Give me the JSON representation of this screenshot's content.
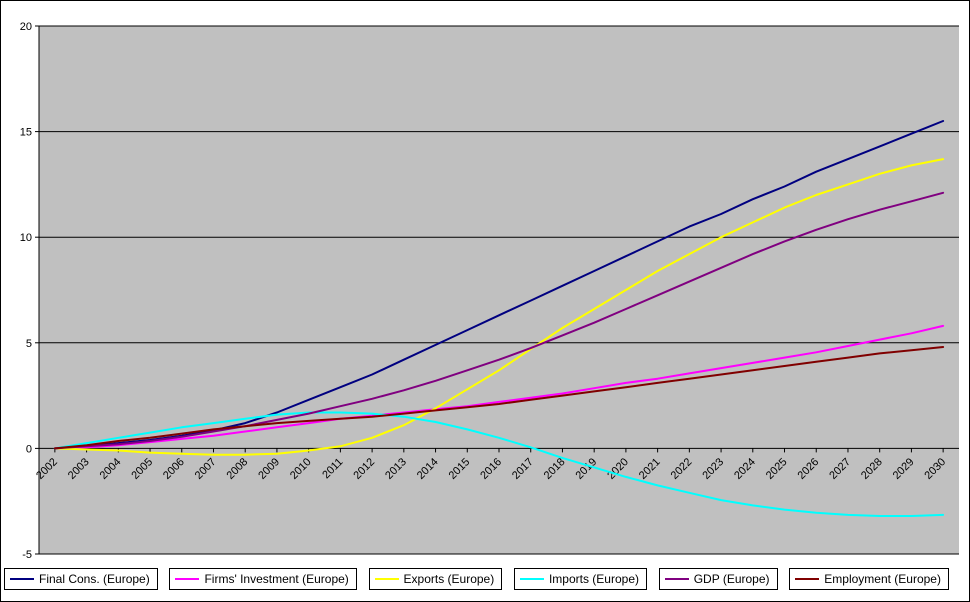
{
  "chart_data": {
    "type": "line",
    "title": "",
    "xlabel": "",
    "ylabel": "",
    "categories": [
      "2002",
      "2003",
      "2004",
      "2005",
      "2006",
      "2007",
      "2008",
      "2009",
      "2010",
      "2011",
      "2012",
      "2013",
      "2014",
      "2015",
      "2016",
      "2017",
      "2018",
      "2019",
      "2020",
      "2021",
      "2022",
      "2023",
      "2024",
      "2025",
      "2026",
      "2027",
      "2028",
      "2029",
      "2030"
    ],
    "ylim": [
      -5,
      20
    ],
    "yticks": [
      20,
      15,
      10,
      5,
      0,
      -5
    ],
    "grid": true,
    "gridline_color": "#000000",
    "plot_bg": "#c0c0c0",
    "legend_position": "bottom",
    "series": [
      {
        "name": "Final Cons. (Europe)",
        "color": "#000080",
        "values": [
          0,
          0.1,
          0.25,
          0.4,
          0.6,
          0.85,
          1.2,
          1.7,
          2.3,
          2.9,
          3.5,
          4.2,
          4.9,
          5.6,
          6.3,
          7.0,
          7.7,
          8.4,
          9.1,
          9.8,
          10.5,
          11.1,
          11.8,
          12.4,
          13.1,
          13.7,
          14.3,
          14.9,
          15.5
        ]
      },
      {
        "name": "Firms' Investment (Europe)",
        "color": "#ff00ff",
        "values": [
          0,
          0.05,
          0.15,
          0.3,
          0.45,
          0.6,
          0.8,
          1.0,
          1.2,
          1.4,
          1.55,
          1.7,
          1.85,
          2.0,
          2.2,
          2.4,
          2.6,
          2.85,
          3.1,
          3.3,
          3.55,
          3.8,
          4.05,
          4.3,
          4.55,
          4.85,
          5.15,
          5.45,
          5.8
        ]
      },
      {
        "name": "Exports (Europe)",
        "color": "#ffff00",
        "values": [
          0,
          -0.05,
          -0.1,
          -0.2,
          -0.25,
          -0.3,
          -0.3,
          -0.25,
          -0.1,
          0.1,
          0.5,
          1.1,
          1.9,
          2.8,
          3.7,
          4.7,
          5.7,
          6.6,
          7.5,
          8.4,
          9.2,
          10.0,
          10.7,
          11.4,
          12.0,
          12.5,
          13.0,
          13.4,
          13.7
        ]
      },
      {
        "name": "Imports (Europe)",
        "color": "#00ffff",
        "values": [
          0,
          0.25,
          0.5,
          0.75,
          1.0,
          1.2,
          1.4,
          1.6,
          1.7,
          1.7,
          1.65,
          1.5,
          1.25,
          0.9,
          0.5,
          0.05,
          -0.45,
          -0.9,
          -1.35,
          -1.75,
          -2.1,
          -2.45,
          -2.7,
          -2.9,
          -3.05,
          -3.15,
          -3.2,
          -3.2,
          -3.15
        ]
      },
      {
        "name": "GDP (Europe)",
        "color": "#800080",
        "values": [
          0,
          0.1,
          0.2,
          0.35,
          0.55,
          0.8,
          1.05,
          1.35,
          1.65,
          2.0,
          2.35,
          2.75,
          3.2,
          3.7,
          4.2,
          4.75,
          5.35,
          5.95,
          6.6,
          7.25,
          7.9,
          8.55,
          9.2,
          9.8,
          10.35,
          10.85,
          11.3,
          11.7,
          12.1
        ]
      },
      {
        "name": "Employment (Europe)",
        "color": "#800000",
        "values": [
          0,
          0.15,
          0.35,
          0.5,
          0.7,
          0.9,
          1.05,
          1.2,
          1.3,
          1.4,
          1.5,
          1.65,
          1.8,
          1.95,
          2.1,
          2.3,
          2.5,
          2.7,
          2.9,
          3.1,
          3.3,
          3.5,
          3.7,
          3.9,
          4.1,
          4.3,
          4.5,
          4.65,
          4.8
        ]
      }
    ]
  }
}
